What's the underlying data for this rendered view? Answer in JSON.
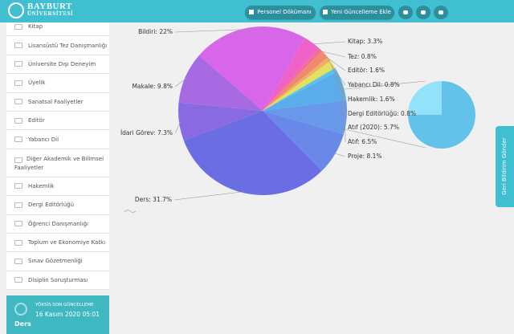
{
  "header": {
    "logo": [
      "BAYBURT",
      "ÜNİVERSİTESİ"
    ],
    "buttons": [
      "Personel Dökümanı",
      "Yeni Güncelleme Ekle"
    ]
  },
  "sidebar": {
    "items": [
      "Kitap",
      "Lisansüstü Tez Danışmanlığı",
      "Üniversite Dışı Deneyim",
      "Üyelik",
      "Sanatsal Faaliyetler",
      "Editör",
      "Yabancı Dil",
      "Diğer Akademik ve Bilimsel Faaliyetler",
      "Hakemlik",
      "Dergi Editörlüğü",
      "Öğrenci Danışmanlığı",
      "Toplum ve Ekonomiye Katkı",
      "Sınav Gözetmenliği",
      "Disiplin Soruşturması"
    ]
  },
  "update_card": {
    "title": "YÖKSİS SON GÜNCELLEME",
    "date": "16 Kasım 2020 05:01",
    "category": "Ders"
  },
  "feedback_tab": "Geri Bildirim Gönder",
  "chart_data": {
    "type": "pie",
    "values": [
      22,
      3.3,
      0.8,
      1.6,
      0.8,
      1.6,
      0.8,
      5.7,
      6.5,
      8.1,
      31.7,
      7.3,
      9.8
    ],
    "value_labels": [
      "Bildiri: 22%",
      "Kitap: 3.3%",
      "Tez: 0.8%",
      "Editör: 1.6%",
      "Yabancı Dil: 0.8%",
      "Hakemlik: 1.6%",
      "Dergi Editörlüğü: 0.8%",
      "Atıf (2020): 5.7%",
      "Atıf: 6.5%",
      "Proje: 8.1%",
      "Ders: 31.7%",
      "İdari Görev: 7.3%",
      "Makale: 9.8%"
    ],
    "colors": [
      "#d866e8",
      "#f062c8",
      "#f07092",
      "#f08a6e",
      "#f0b05e",
      "#e6e062",
      "#5cc2ea",
      "#5aacea",
      "#6898ea",
      "#6888ea",
      "#6a6ee2",
      "#8a6ae2",
      "#a86ae2"
    ]
  }
}
